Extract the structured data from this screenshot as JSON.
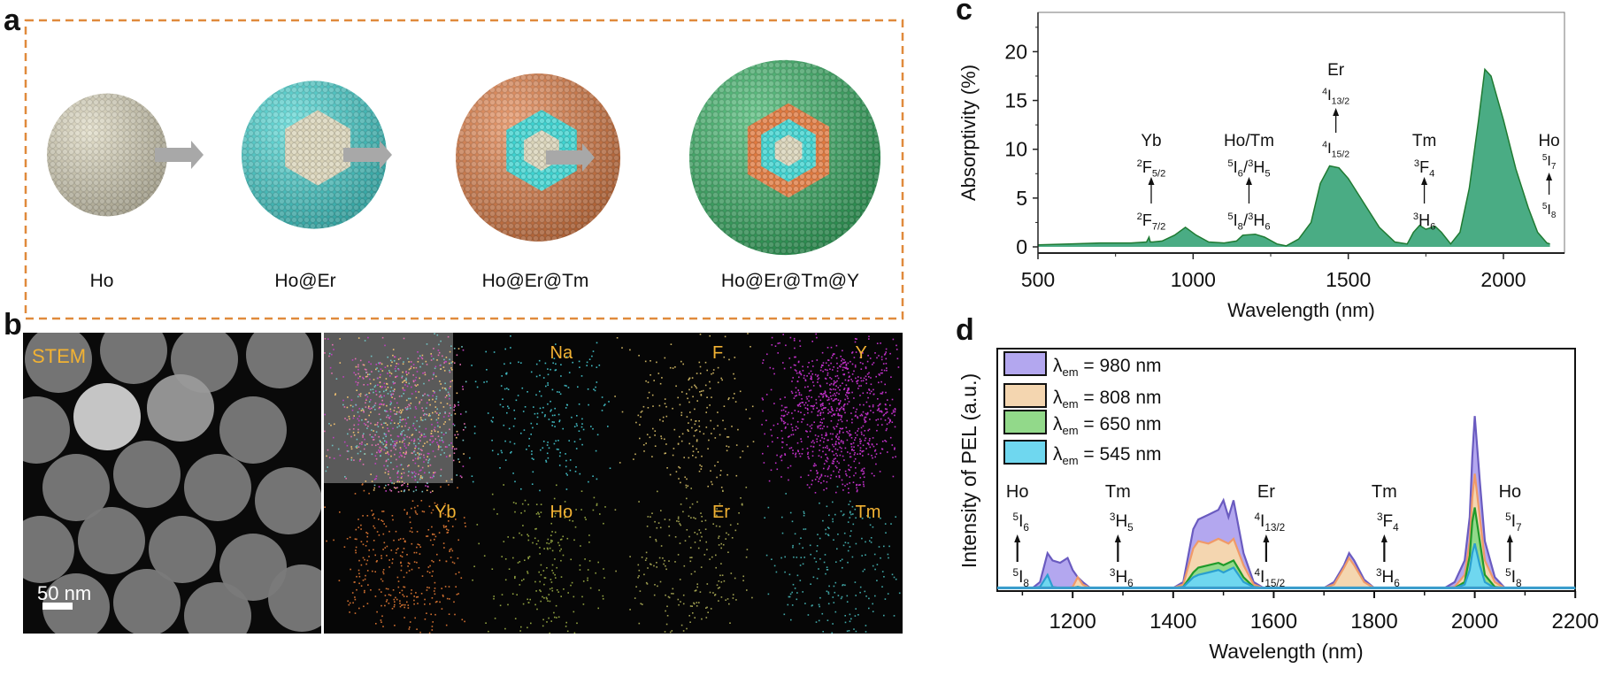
{
  "panel_labels": {
    "a": "a",
    "b": "b",
    "c": "c",
    "d": "d"
  },
  "panel_a": {
    "stages": [
      {
        "label": "Ho",
        "layers": [
          "#d9d3b8"
        ]
      },
      {
        "label": "Ho@Er",
        "layers": [
          "#d9d3b8",
          "#3fd3d0"
        ]
      },
      {
        "label": "Ho@Er@Tm",
        "layers": [
          "#d9d3b8",
          "#3fd3d0",
          "#e07a40"
        ]
      },
      {
        "label": "Ho@Er@Tm@Y",
        "layers": [
          "#d9d3b8",
          "#3fd3d0",
          "#e07a40",
          "#2fae5e"
        ]
      }
    ],
    "frame_color": "#e08a3c",
    "arrow_color": "#a8a8a8"
  },
  "panel_b": {
    "stem_label": "STEM",
    "scale_bar": "50 nm",
    "label_color": "#f2b233",
    "maps": [
      {
        "label": "",
        "color": "#e080c0",
        "kind": "overlay"
      },
      {
        "label": "Na",
        "color": "#3fb8c0"
      },
      {
        "label": "F",
        "color": "#c8b060"
      },
      {
        "label": "Y",
        "color": "#c030c8"
      },
      {
        "label": "Yb",
        "color": "#d07030"
      },
      {
        "label": "Ho",
        "color": "#90a040"
      },
      {
        "label": "Er",
        "color": "#a0a050"
      },
      {
        "label": "Tm",
        "color": "#40a8a8"
      }
    ]
  },
  "chart_data": [
    {
      "type": "area",
      "panel": "c",
      "xlabel": "Wavelength (nm)",
      "ylabel": "Absorptivity (%)",
      "xlim": [
        500,
        2200
      ],
      "ylim": [
        -0.6,
        24
      ],
      "xticks": [
        "500",
        "1000",
        "1500",
        "2000"
      ],
      "yticks": [
        "0",
        "5",
        "10",
        "15",
        "20"
      ],
      "grid": false,
      "fill_color": "#4aac84",
      "line_color": "#1f7a32",
      "x": [
        500,
        600,
        700,
        800,
        850,
        858,
        862,
        870,
        900,
        940,
        975,
        1010,
        1050,
        1100,
        1140,
        1160,
        1200,
        1230,
        1270,
        1300,
        1340,
        1380,
        1410,
        1440,
        1470,
        1500,
        1550,
        1600,
        1650,
        1690,
        1710,
        1730,
        1750,
        1780,
        1800,
        1830,
        1860,
        1890,
        1920,
        1940,
        1960,
        2000,
        2040,
        2080,
        2110,
        2140,
        2150
      ],
      "y": [
        0.2,
        0.3,
        0.4,
        0.4,
        0.5,
        1.0,
        0.5,
        0.5,
        0.6,
        1.2,
        2.0,
        1.2,
        0.5,
        0.4,
        0.6,
        1.2,
        1.3,
        1.0,
        0.3,
        0.1,
        0.8,
        2.5,
        6.5,
        8.3,
        8.1,
        7.0,
        4.5,
        2.0,
        0.5,
        0.3,
        1.5,
        2.2,
        1.8,
        2.1,
        1.5,
        0.3,
        1.5,
        6.0,
        13.0,
        18.2,
        17.5,
        13.0,
        8.0,
        4.0,
        1.5,
        0.4,
        0.3
      ],
      "annotations": [
        {
          "ion": "Yb",
          "x": 865,
          "upper": [
            [
              "2",
              "F",
              "5/2"
            ]
          ],
          "lower": [
            [
              "2",
              "F",
              "7/2"
            ]
          ]
        },
        {
          "ion": "Ho/Tm",
          "x": 1180,
          "upper": [
            [
              "5",
              "I",
              "6"
            ],
            [
              "3",
              "H",
              "5"
            ]
          ],
          "lower": [
            [
              "5",
              "I",
              "8"
            ],
            [
              "3",
              "H",
              "6"
            ]
          ]
        },
        {
          "ion": "Er",
          "x": 1460,
          "upper": [
            [
              "4",
              "I",
              "13/2"
            ]
          ],
          "lower": [
            [
              "4",
              "I",
              "15/2"
            ]
          ],
          "high": true
        },
        {
          "ion": "Tm",
          "x": 1745,
          "upper": [
            [
              "3",
              "F",
              "4"
            ]
          ],
          "lower": [
            [
              "3",
              "H",
              "6"
            ]
          ]
        },
        {
          "ion": "Ho",
          "x": 2130,
          "upper": [
            [
              "5",
              "I",
              "7"
            ]
          ],
          "lower": [
            [
              "5",
              "I",
              "8"
            ]
          ]
        }
      ]
    },
    {
      "type": "area",
      "panel": "d",
      "xlabel": "Wavelength (nm)",
      "ylabel": "Intensity of PEL (a.u.)",
      "xlim": [
        1050,
        2200
      ],
      "ylim": [
        0,
        100
      ],
      "xticks": [
        "1200",
        "1400",
        "1600",
        "1800",
        "2000",
        "2200"
      ],
      "grid": false,
      "legend_position": "top-left",
      "x": [
        1050,
        1120,
        1135,
        1150,
        1160,
        1175,
        1190,
        1200,
        1210,
        1220,
        1235,
        1250,
        1400,
        1420,
        1440,
        1450,
        1470,
        1490,
        1500,
        1510,
        1520,
        1540,
        1560,
        1580,
        1700,
        1720,
        1740,
        1750,
        1760,
        1780,
        1800,
        1940,
        1960,
        1980,
        1990,
        1995,
        2000,
        2010,
        2020,
        2040,
        2060,
        2200
      ],
      "series": [
        {
          "name_symbol": "λ",
          "name_sub": "em",
          "name_rest": " = 980 nm",
          "fill": "#b3a7ef",
          "line": "#6a5bc0",
          "values": [
            0.5,
            0.5,
            3,
            15,
            12,
            11,
            13,
            8,
            5,
            3,
            0.5,
            0.5,
            0.5,
            3,
            25,
            29,
            31,
            33,
            37,
            30,
            37,
            15,
            3,
            0.5,
            0.5,
            3,
            10,
            15,
            12,
            4,
            0.5,
            0.5,
            3,
            12,
            30,
            55,
            72,
            45,
            20,
            5,
            0.5,
            0.5
          ]
        },
        {
          "name_symbol": "λ",
          "name_sub": "em",
          "name_rest": " = 808 nm",
          "fill": "#f4d6b0",
          "line": "#f09a68",
          "values": [
            0.5,
            0.5,
            1,
            5,
            1,
            0.5,
            0.5,
            1,
            5,
            2,
            0.5,
            0.5,
            0.5,
            2,
            17,
            20,
            19,
            21,
            20,
            19,
            21,
            10,
            2,
            0.5,
            0.5,
            2,
            9,
            13,
            10,
            3,
            0.5,
            0.5,
            1,
            6,
            20,
            38,
            48,
            30,
            12,
            3,
            0.5,
            0.5
          ]
        },
        {
          "name_symbol": "λ",
          "name_sub": "em",
          "name_rest": " = 650 nm",
          "fill": "#92d98a",
          "line": "#1f9a2a",
          "values": [
            0.5,
            0.5,
            0.5,
            2,
            0.5,
            0.5,
            0.5,
            0.5,
            1,
            0.5,
            0.5,
            0.5,
            0.5,
            1,
            7,
            9,
            10,
            11,
            10,
            11,
            12,
            5,
            1,
            0.5,
            0.5,
            0.5,
            0.5,
            0.5,
            0.5,
            0.5,
            0.5,
            0.5,
            0.5,
            3,
            14,
            28,
            34,
            20,
            6,
            1,
            0.5,
            0.5
          ]
        },
        {
          "name_symbol": "λ",
          "name_sub": "em",
          "name_rest": " = 545 nm",
          "fill": "#6fd7ef",
          "line": "#2a9fd0",
          "values": [
            0.5,
            0.5,
            1,
            6,
            1,
            0.5,
            0.5,
            0.5,
            1,
            0.5,
            0.5,
            0.5,
            0.5,
            1,
            5,
            6,
            7,
            8,
            7,
            8,
            9,
            3,
            1,
            0.5,
            0.5,
            0.5,
            0.5,
            0.5,
            0.5,
            0.5,
            0.5,
            0.5,
            0.5,
            2,
            8,
            15,
            19,
            10,
            3,
            0.5,
            0.5,
            0.5
          ]
        }
      ],
      "annotations": [
        {
          "ion": "Ho",
          "x": 1090,
          "upper": [
            [
              "5",
              "I",
              "6"
            ]
          ],
          "lower": [
            [
              "5",
              "I",
              "8"
            ]
          ]
        },
        {
          "ion": "Tm",
          "x": 1290,
          "upper": [
            [
              "3",
              "H",
              "5"
            ]
          ],
          "lower": [
            [
              "3",
              "H",
              "6"
            ]
          ]
        },
        {
          "ion": "Er",
          "x": 1585,
          "upper": [
            [
              "4",
              "I",
              "13/2"
            ]
          ],
          "lower": [
            [
              "4",
              "I",
              "15/2"
            ]
          ]
        },
        {
          "ion": "Tm",
          "x": 1820,
          "upper": [
            [
              "3",
              "F",
              "4"
            ]
          ],
          "lower": [
            [
              "3",
              "H",
              "6"
            ]
          ]
        },
        {
          "ion": "Ho",
          "x": 2070,
          "upper": [
            [
              "5",
              "I",
              "7"
            ]
          ],
          "lower": [
            [
              "5",
              "I",
              "8"
            ]
          ]
        }
      ]
    }
  ]
}
